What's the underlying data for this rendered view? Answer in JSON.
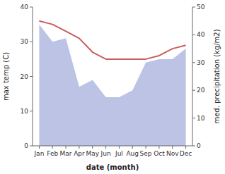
{
  "chart_data": {
    "type": "line",
    "categories": [
      "Jan",
      "Feb",
      "Mar",
      "Apr",
      "May",
      "Jun",
      "Jul",
      "Aug",
      "Sep",
      "Oct",
      "Nov",
      "Dec"
    ],
    "series": [
      {
        "type": "area",
        "color": "#b0b8e0",
        "values": [
          35,
          30,
          31,
          17,
          19,
          14,
          14,
          16,
          24,
          25,
          25,
          28
        ]
      },
      {
        "type": "line",
        "color": "#cd5c5c",
        "values": [
          36,
          35,
          33,
          31,
          27,
          25,
          25,
          25,
          25,
          26,
          28,
          29
        ]
      }
    ],
    "xlabel": "date (month)",
    "ylabel": "max temp (C)",
    "y2label": "med. precipitation (kg/m2)",
    "ylim": [
      0,
      40
    ],
    "yticks": [
      0,
      10,
      20,
      30,
      40
    ],
    "y2lim": [
      0,
      50
    ],
    "y2ticks": [
      0,
      10,
      20,
      30,
      40,
      50
    ],
    "grid": false
  }
}
